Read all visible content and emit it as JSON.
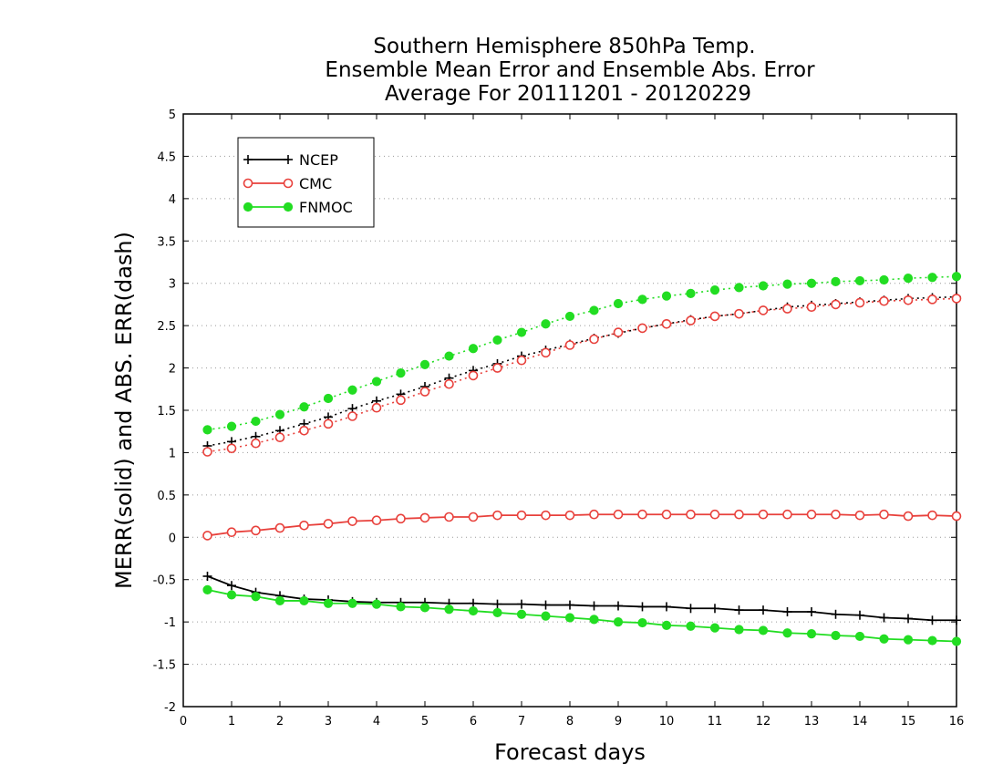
{
  "chart_data": {
    "type": "line",
    "title_lines": [
      "Southern Hemisphere 850hPa Temp.",
      "Ensemble Mean Error and Ensemble Abs. Error",
      "Average For 20111201 - 20120229"
    ],
    "xlabel": "Forecast days",
    "ylabel": "MERR(solid) and ABS. ERR(dash)",
    "xlim": [
      0,
      16
    ],
    "ylim": [
      -2,
      5
    ],
    "xticks": [
      "0",
      "1",
      "2",
      "3",
      "4",
      "5",
      "6",
      "7",
      "8",
      "9",
      "10",
      "11",
      "12",
      "13",
      "14",
      "15",
      "16"
    ],
    "yticks": [
      "-2",
      "-1.5",
      "-1",
      "-0.5",
      "0",
      "0.5",
      "1",
      "1.5",
      "2",
      "2.5",
      "3",
      "3.5",
      "4",
      "4.5",
      "5"
    ],
    "grid": "horizontal-dotted",
    "legend_position": "top-left",
    "x": [
      0.5,
      1,
      1.5,
      2,
      2.5,
      3,
      3.5,
      4,
      4.5,
      5,
      5.5,
      6,
      6.5,
      7,
      7.5,
      8,
      8.5,
      9,
      9.5,
      10,
      10.5,
      11,
      11.5,
      12,
      12.5,
      13,
      13.5,
      14,
      14.5,
      15,
      15.5,
      16
    ],
    "series": [
      {
        "name": "NCEP",
        "color": "#000000",
        "marker": "plus",
        "mean_error": [
          -0.46,
          -0.57,
          -0.65,
          -0.69,
          -0.73,
          -0.74,
          -0.76,
          -0.77,
          -0.77,
          -0.77,
          -0.78,
          -0.78,
          -0.79,
          -0.79,
          -0.8,
          -0.8,
          -0.81,
          -0.81,
          -0.82,
          -0.82,
          -0.84,
          -0.84,
          -0.86,
          -0.86,
          -0.88,
          -0.88,
          -0.91,
          -0.92,
          -0.95,
          -0.96,
          -0.98,
          -0.98
        ],
        "abs_error": [
          1.08,
          1.13,
          1.19,
          1.26,
          1.34,
          1.42,
          1.52,
          1.61,
          1.69,
          1.78,
          1.88,
          1.97,
          2.05,
          2.14,
          2.21,
          2.28,
          2.35,
          2.41,
          2.47,
          2.52,
          2.57,
          2.61,
          2.64,
          2.68,
          2.72,
          2.74,
          2.76,
          2.78,
          2.8,
          2.82,
          2.83,
          2.84
        ]
      },
      {
        "name": "CMC",
        "color": "#e8413c",
        "marker": "open-circle",
        "mean_error": [
          0.02,
          0.06,
          0.08,
          0.11,
          0.14,
          0.16,
          0.19,
          0.2,
          0.22,
          0.23,
          0.24,
          0.24,
          0.26,
          0.26,
          0.26,
          0.26,
          0.27,
          0.27,
          0.27,
          0.27,
          0.27,
          0.27,
          0.27,
          0.27,
          0.27,
          0.27,
          0.27,
          0.26,
          0.27,
          0.25,
          0.26,
          0.25
        ],
        "abs_error": [
          1.01,
          1.05,
          1.11,
          1.18,
          1.26,
          1.34,
          1.43,
          1.53,
          1.62,
          1.72,
          1.81,
          1.91,
          2.0,
          2.09,
          2.18,
          2.27,
          2.34,
          2.42,
          2.47,
          2.52,
          2.56,
          2.61,
          2.64,
          2.68,
          2.7,
          2.72,
          2.75,
          2.77,
          2.79,
          2.8,
          2.81,
          2.82
        ]
      },
      {
        "name": "FNMOC",
        "color": "#22dd22",
        "marker": "filled-circle",
        "mean_error": [
          -0.62,
          -0.68,
          -0.7,
          -0.75,
          -0.75,
          -0.78,
          -0.78,
          -0.79,
          -0.82,
          -0.83,
          -0.85,
          -0.87,
          -0.89,
          -0.91,
          -0.93,
          -0.95,
          -0.97,
          -1.0,
          -1.01,
          -1.04,
          -1.05,
          -1.07,
          -1.09,
          -1.1,
          -1.13,
          -1.14,
          -1.16,
          -1.17,
          -1.2,
          -1.21,
          -1.22,
          -1.23
        ],
        "abs_error": [
          1.27,
          1.31,
          1.37,
          1.45,
          1.54,
          1.64,
          1.74,
          1.84,
          1.94,
          2.04,
          2.14,
          2.23,
          2.33,
          2.42,
          2.52,
          2.61,
          2.68,
          2.76,
          2.81,
          2.85,
          2.88,
          2.92,
          2.95,
          2.97,
          2.99,
          3.0,
          3.02,
          3.03,
          3.04,
          3.06,
          3.07,
          3.08
        ]
      }
    ]
  }
}
